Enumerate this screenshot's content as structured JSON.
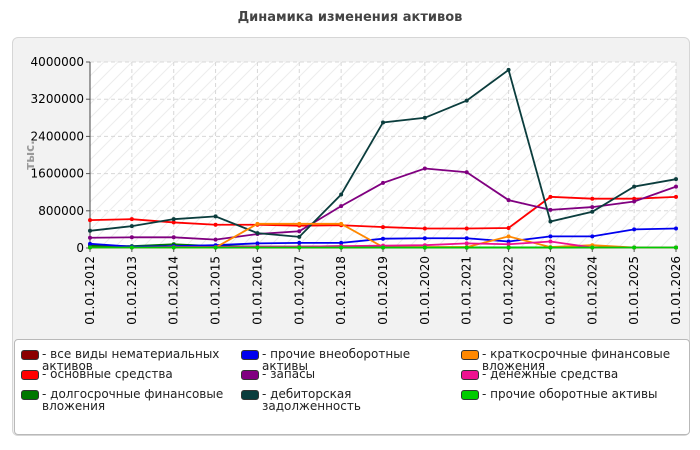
{
  "page": {
    "title": "Динамика изменения активов"
  },
  "chart_data": {
    "type": "line",
    "title": "Динамика изменения активов",
    "xlabel": "",
    "ylabel": "тыс.",
    "ylim": [
      0,
      4000000
    ],
    "yticks": [
      "4000000",
      "3200000",
      "2400000",
      "1600000",
      "800000",
      "0"
    ],
    "ytick_values": [
      4000000,
      3200000,
      2400000,
      1600000,
      800000,
      0
    ],
    "grid": true,
    "legend_position": "bottom",
    "categories": [
      "01.01.2012",
      "01.01.2013",
      "01.01.2014",
      "01.01.2015",
      "01.01.2016",
      "01.01.2017",
      "01.01.2018",
      "01.01.2019",
      "01.01.2020",
      "01.01.2021",
      "01.01.2022",
      "01.01.2023",
      "01.01.2024",
      "01.01.2025",
      "01.01.2026"
    ],
    "series": [
      {
        "name": "- все виды нематериальных активов",
        "color": "#8b0000",
        "values": [
          20000,
          15000,
          15000,
          10000,
          10000,
          10000,
          10000,
          10000,
          10000,
          10000,
          10000,
          10000,
          10000,
          10000,
          10000
        ]
      },
      {
        "name": "- основные средства",
        "color": "#ff0000",
        "values": [
          600000,
          620000,
          550000,
          500000,
          500000,
          480000,
          490000,
          450000,
          420000,
          420000,
          430000,
          1100000,
          1060000,
          1060000,
          1100000
        ]
      },
      {
        "name": "- долгосрочные финансовые вложения",
        "color": "#007700",
        "values": [
          50000,
          40000,
          80000,
          40000,
          30000,
          30000,
          40000,
          10000,
          10000,
          10000,
          10000,
          10000,
          10000,
          10000,
          10000
        ]
      },
      {
        "name": "- прочие внеоборотные активы",
        "color": "#0000ee",
        "values": [
          90000,
          30000,
          40000,
          60000,
          100000,
          110000,
          110000,
          200000,
          210000,
          210000,
          140000,
          250000,
          250000,
          400000,
          420000
        ]
      },
      {
        "name": "- запасы",
        "color": "#800080",
        "values": [
          220000,
          230000,
          230000,
          180000,
          300000,
          360000,
          900000,
          1400000,
          1710000,
          1630000,
          1030000,
          820000,
          880000,
          1000000,
          1320000
        ]
      },
      {
        "name": "- дебиторская задолженность",
        "color": "#0b3d3d",
        "values": [
          370000,
          470000,
          620000,
          680000,
          320000,
          240000,
          1150000,
          2700000,
          2800000,
          3170000,
          3830000,
          570000,
          780000,
          1320000,
          1480000
        ]
      },
      {
        "name": "- краткосрочные финансовые вложения",
        "color": "#ff8800",
        "values": [
          10000,
          10000,
          10000,
          10000,
          520000,
          520000,
          520000,
          20000,
          20000,
          20000,
          250000,
          20000,
          60000,
          10000,
          10000
        ]
      },
      {
        "name": "- денежные средства",
        "color": "#ee1190",
        "values": [
          10000,
          10000,
          20000,
          20000,
          30000,
          30000,
          40000,
          50000,
          60000,
          100000,
          80000,
          140000,
          10000,
          10000,
          10000
        ]
      },
      {
        "name": "- прочие оборотные активы",
        "color": "#00cc00",
        "values": [
          10000,
          10000,
          10000,
          10000,
          10000,
          10000,
          10000,
          10000,
          10000,
          10000,
          10000,
          10000,
          10000,
          10000,
          10000
        ]
      }
    ]
  }
}
